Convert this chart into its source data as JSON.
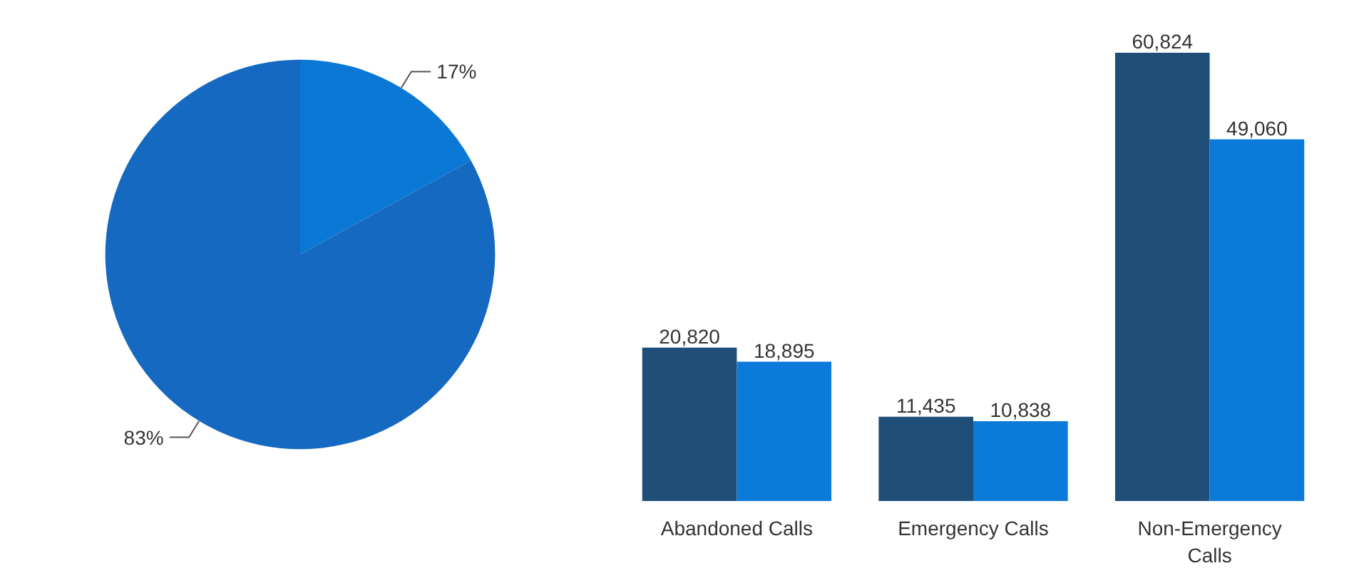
{
  "chart_data": [
    {
      "type": "pie",
      "categories": [
        null,
        null
      ],
      "values": [
        17,
        83
      ],
      "colors": [
        "#0b78d6",
        "#1569c0"
      ],
      "value_labels": [
        "17%",
        "83%"
      ]
    },
    {
      "type": "bar",
      "categories": [
        "Abandoned Calls",
        "Emergency Calls",
        "Non-Emergency Calls"
      ],
      "series": [
        {
          "color": "#1f4e79",
          "values": [
            20820,
            11435,
            60824
          ],
          "value_labels": [
            "20,820",
            "11,435",
            "60,824"
          ]
        },
        {
          "color": "#0b7ad8",
          "values": [
            18895,
            10838,
            49060
          ],
          "value_labels": [
            "18,895",
            "10,838",
            "49,060"
          ]
        }
      ]
    }
  ]
}
